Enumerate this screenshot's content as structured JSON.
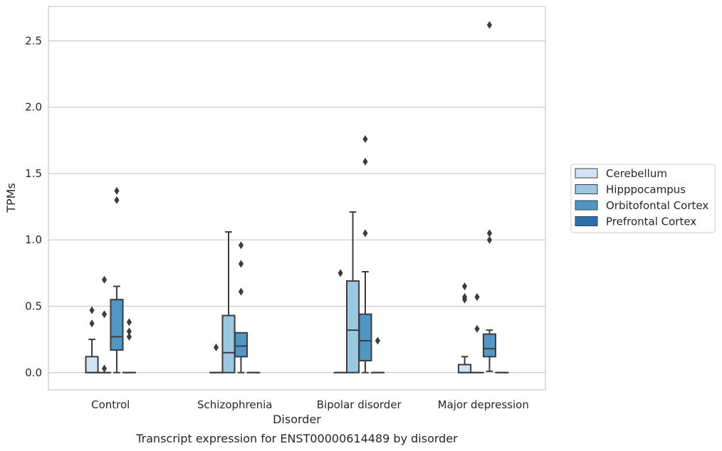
{
  "chart_data": {
    "type": "box",
    "title": "",
    "caption": "Transcript expression for ENST00000614489 by disorder",
    "xlabel": "Disorder",
    "ylabel": "TPMs",
    "ylim": [
      -0.13,
      2.76
    ],
    "yticks": [
      "0.0",
      "0.5",
      "1.0",
      "1.5",
      "2.0",
      "2.5"
    ],
    "grid": "horizontal",
    "legend_position": "right",
    "categories": [
      "Control",
      "Schizophrenia",
      "Bipolar disorder",
      "Major depression"
    ],
    "series": [
      {
        "name": "Cerebellum",
        "color": "#d3e3f3",
        "boxes": [
          {
            "q1": 0.0,
            "median": 0.0,
            "q3": 0.12,
            "whisker_low": 0.0,
            "whisker_high": 0.25,
            "outliers": [
              0.37,
              0.47
            ]
          },
          {
            "q1": 0.0,
            "median": 0.0,
            "q3": 0.0,
            "whisker_low": 0.0,
            "whisker_high": 0.0,
            "outliers": [
              0.19
            ]
          },
          {
            "q1": 0.0,
            "median": 0.0,
            "q3": 0.0,
            "whisker_low": 0.0,
            "whisker_high": 0.0,
            "outliers": [
              0.75
            ]
          },
          {
            "q1": 0.0,
            "median": 0.0,
            "q3": 0.06,
            "whisker_low": 0.0,
            "whisker_high": 0.12,
            "outliers": [
              0.55,
              0.57,
              0.65
            ]
          }
        ]
      },
      {
        "name": "Hipppocampus",
        "color": "#9ac8e0",
        "boxes": [
          {
            "q1": 0.0,
            "median": 0.0,
            "q3": 0.0,
            "whisker_low": 0.0,
            "whisker_high": 0.0,
            "outliers": [
              0.03,
              0.44,
              0.7
            ]
          },
          {
            "q1": 0.0,
            "median": 0.15,
            "q3": 0.43,
            "whisker_low": 0.0,
            "whisker_high": 1.06,
            "outliers": []
          },
          {
            "q1": 0.0,
            "median": 0.32,
            "q3": 0.69,
            "whisker_low": 0.0,
            "whisker_high": 1.21,
            "outliers": []
          },
          {
            "q1": 0.0,
            "median": 0.0,
            "q3": 0.0,
            "whisker_low": 0.0,
            "whisker_high": 0.0,
            "outliers": [
              0.33,
              0.57
            ]
          }
        ]
      },
      {
        "name": "Orbitofontal Cortex",
        "color": "#5296c6",
        "boxes": [
          {
            "q1": 0.17,
            "median": 0.27,
            "q3": 0.55,
            "whisker_low": 0.0,
            "whisker_high": 0.65,
            "outliers": [
              1.3,
              1.37
            ]
          },
          {
            "q1": 0.12,
            "median": 0.2,
            "q3": 0.3,
            "whisker_low": 0.0,
            "whisker_high": 0.3,
            "outliers": [
              0.61,
              0.82,
              0.96
            ]
          },
          {
            "q1": 0.09,
            "median": 0.24,
            "q3": 0.44,
            "whisker_low": 0.0,
            "whisker_high": 0.76,
            "outliers": [
              1.05,
              1.59,
              1.76
            ]
          },
          {
            "q1": 0.12,
            "median": 0.18,
            "q3": 0.29,
            "whisker_low": 0.01,
            "whisker_high": 0.32,
            "outliers": [
              1.0,
              1.05,
              2.62
            ]
          }
        ]
      },
      {
        "name": "Prefrontal Cortex",
        "color": "#2a6eb0",
        "boxes": [
          {
            "q1": 0.0,
            "median": 0.0,
            "q3": 0.0,
            "whisker_low": 0.0,
            "whisker_high": 0.0,
            "outliers": [
              0.27,
              0.31,
              0.38
            ]
          },
          {
            "q1": 0.0,
            "median": 0.0,
            "q3": 0.0,
            "whisker_low": 0.0,
            "whisker_high": 0.0,
            "outliers": []
          },
          {
            "q1": 0.0,
            "median": 0.0,
            "q3": 0.0,
            "whisker_low": 0.0,
            "whisker_high": 0.0,
            "outliers": [
              0.24
            ]
          },
          {
            "q1": 0.0,
            "median": 0.0,
            "q3": 0.0,
            "whisker_low": 0.0,
            "whisker_high": 0.0,
            "outliers": []
          }
        ]
      }
    ]
  }
}
